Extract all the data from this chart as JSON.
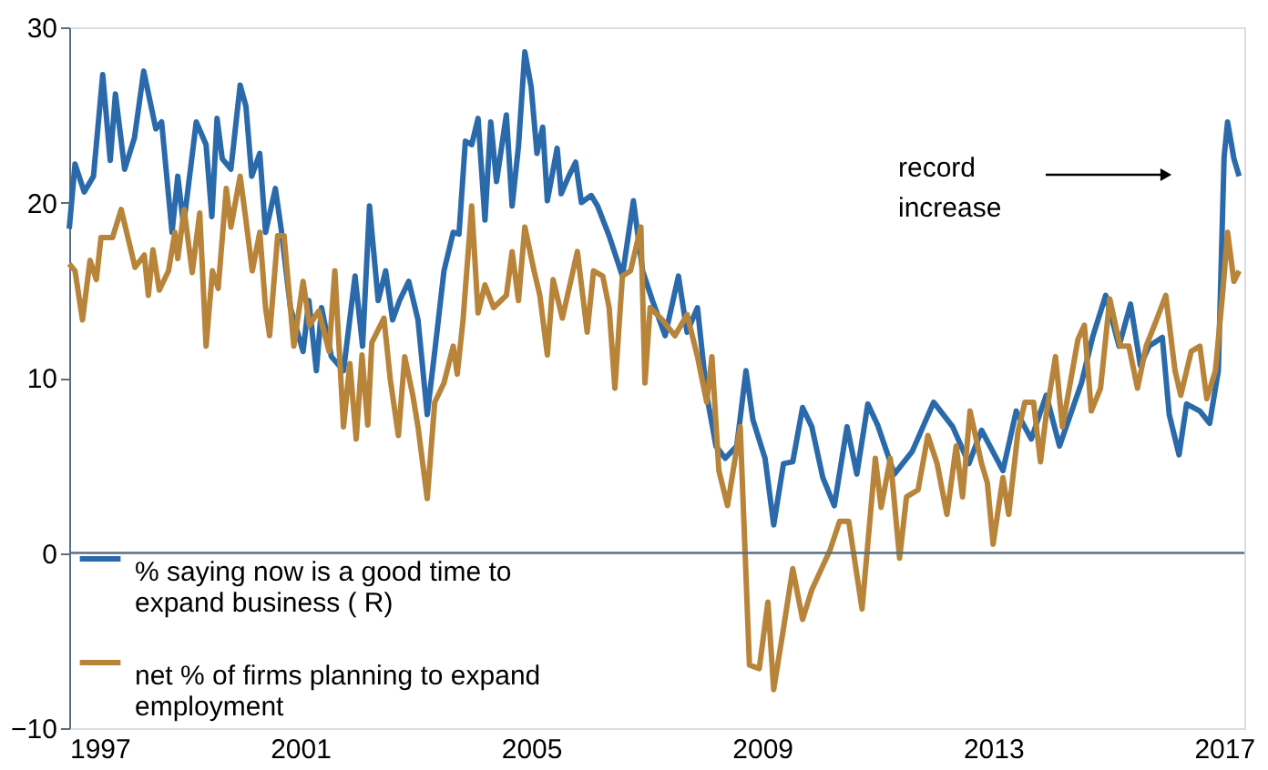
{
  "chart_data": {
    "type": "line",
    "xlim": [
      1997,
      2017.35
    ],
    "xticks": [
      1997,
      2001,
      2005,
      2009,
      2013,
      2017
    ],
    "ylim": [
      -10,
      30
    ],
    "yticks": [
      -10,
      0,
      10,
      20,
      30
    ],
    "grid": false,
    "legend": "bottom left",
    "line_style": "solid",
    "marker": "none",
    "ref_lines": [
      {
        "axis": "y",
        "value": 0,
        "color": "#5a6e7f"
      }
    ],
    "annotations": [
      "record increase"
    ],
    "series": [
      {
        "name": "% saying now is a good time to expand business ( R)",
        "color": "#2a6aab",
        "x": [
          1997.0,
          1997.1,
          1997.26,
          1997.42,
          1997.58,
          1997.71,
          1997.8,
          1997.96,
          1998.13,
          1998.29,
          1998.5,
          1998.6,
          1998.78,
          1998.88,
          1998.98,
          1999.2,
          1999.37,
          1999.47,
          1999.56,
          1999.65,
          1999.8,
          1999.96,
          2000.06,
          2000.16,
          2000.3,
          2000.4,
          2000.57,
          2000.67,
          2000.83,
          2001.05,
          2001.15,
          2001.28,
          2001.37,
          2001.54,
          2001.75,
          2001.95,
          2002.08,
          2002.2,
          2002.35,
          2002.48,
          2002.6,
          2002.72,
          2002.88,
          2003.04,
          2003.2,
          2003.33,
          2003.49,
          2003.65,
          2003.75,
          2003.86,
          2003.97,
          2004.08,
          2004.2,
          2004.3,
          2004.4,
          2004.57,
          2004.67,
          2004.78,
          2004.89,
          2005.0,
          2005.1,
          2005.2,
          2005.28,
          2005.45,
          2005.52,
          2005.65,
          2005.77,
          2005.87,
          2006.04,
          2006.15,
          2006.35,
          2006.58,
          2006.77,
          2006.93,
          2007.1,
          2007.32,
          2007.55,
          2007.7,
          2007.88,
          2008.04,
          2008.2,
          2008.36,
          2008.56,
          2008.72,
          2008.84,
          2009.05,
          2009.2,
          2009.37,
          2009.53,
          2009.7,
          2009.86,
          2010.05,
          2010.25,
          2010.47,
          2010.64,
          2010.83,
          2011.0,
          2011.29,
          2011.6,
          2011.97,
          2012.3,
          2012.58,
          2012.8,
          2013.17,
          2013.4,
          2013.66,
          2013.92,
          2014.15,
          2014.53,
          2014.73,
          2014.95,
          2015.18,
          2015.38,
          2015.55,
          2015.7,
          2015.93,
          2016.05,
          2016.22,
          2016.35,
          2016.58,
          2016.75,
          2016.9,
          2017.0,
          2017.06,
          2017.17,
          2017.26
        ],
        "values": [
          18.5,
          22.2,
          20.6,
          21.5,
          27.3,
          22.4,
          26.2,
          21.9,
          23.7,
          27.5,
          24.2,
          24.6,
          18.3,
          21.5,
          18.7,
          24.6,
          23.3,
          19.2,
          24.8,
          22.5,
          21.9,
          26.7,
          25.5,
          21.5,
          22.8,
          18.3,
          20.8,
          18.5,
          14.0,
          11.5,
          14.4,
          10.4,
          14.0,
          11.2,
          10.4,
          15.8,
          11.8,
          19.8,
          14.4,
          16.1,
          13.3,
          14.4,
          15.5,
          13.3,
          7.9,
          11.5,
          16.1,
          18.3,
          18.2,
          23.5,
          23.3,
          24.8,
          19.0,
          24.6,
          21.2,
          25.0,
          19.8,
          23.2,
          28.6,
          26.6,
          22.8,
          24.3,
          20.1,
          23.1,
          20.5,
          21.5,
          22.3,
          20.0,
          20.4,
          19.8,
          18.1,
          15.8,
          20.1,
          16.1,
          14.4,
          12.4,
          15.8,
          12.6,
          14.0,
          9.0,
          6.1,
          5.4,
          6.1,
          10.4,
          7.6,
          5.4,
          1.6,
          5.1,
          5.2,
          8.3,
          7.2,
          4.3,
          2.7,
          7.2,
          4.5,
          8.5,
          7.3,
          4.5,
          5.8,
          8.6,
          7.2,
          5.1,
          7.0,
          4.7,
          8.1,
          6.5,
          9.0,
          6.1,
          9.7,
          12.4,
          14.7,
          11.8,
          14.2,
          10.7,
          11.8,
          12.3,
          7.9,
          5.6,
          8.5,
          8.1,
          7.4,
          10.4,
          22.6,
          24.6,
          22.5,
          21.5
        ]
      },
      {
        "name": "net % of firms planning to expand employment",
        "color": "#b8843a",
        "x": [
          1997.0,
          1997.1,
          1997.23,
          1997.36,
          1997.47,
          1997.55,
          1997.75,
          1997.9,
          1998.14,
          1998.3,
          1998.37,
          1998.45,
          1998.56,
          1998.72,
          1998.83,
          1998.88,
          1998.99,
          1999.13,
          1999.26,
          1999.37,
          1999.48,
          1999.58,
          1999.72,
          1999.8,
          1999.96,
          2000.06,
          2000.17,
          2000.3,
          2000.4,
          2000.47,
          2000.61,
          2000.72,
          2000.89,
          2001.05,
          2001.16,
          2001.32,
          2001.5,
          2001.6,
          2001.75,
          2001.86,
          2001.97,
          2002.07,
          2002.17,
          2002.24,
          2002.45,
          2002.56,
          2002.7,
          2002.81,
          2002.95,
          2003.04,
          2003.2,
          2003.33,
          2003.49,
          2003.65,
          2003.72,
          2003.82,
          2003.97,
          2004.08,
          2004.2,
          2004.35,
          2004.57,
          2004.67,
          2004.78,
          2004.89,
          2005.05,
          2005.15,
          2005.28,
          2005.38,
          2005.54,
          2005.8,
          2005.97,
          2006.08,
          2006.24,
          2006.35,
          2006.45,
          2006.58,
          2006.72,
          2006.9,
          2006.97,
          2007.06,
          2007.27,
          2007.49,
          2007.7,
          2007.88,
          2008.04,
          2008.13,
          2008.25,
          2008.4,
          2008.62,
          2008.78,
          2008.95,
          2009.1,
          2009.2,
          2009.37,
          2009.53,
          2009.7,
          2009.86,
          2010.0,
          2010.18,
          2010.34,
          2010.5,
          2010.73,
          2010.96,
          2011.06,
          2011.22,
          2011.38,
          2011.5,
          2011.7,
          2011.87,
          2012.03,
          2012.2,
          2012.36,
          2012.47,
          2012.6,
          2012.8,
          2012.9,
          2013.0,
          2013.17,
          2013.27,
          2013.43,
          2013.55,
          2013.7,
          2013.82,
          2013.92,
          2014.08,
          2014.2,
          2014.47,
          2014.58,
          2014.7,
          2014.86,
          2015.02,
          2015.2,
          2015.35,
          2015.5,
          2015.65,
          2015.83,
          2015.99,
          2016.15,
          2016.25,
          2016.43,
          2016.58,
          2016.7,
          2016.85,
          2016.98,
          2017.06,
          2017.17,
          2017.26
        ],
        "values": [
          16.5,
          16.1,
          13.3,
          16.7,
          15.6,
          18.0,
          18.0,
          19.6,
          16.3,
          17.0,
          14.7,
          17.3,
          15.0,
          16.1,
          18.3,
          16.8,
          19.6,
          16.0,
          19.4,
          11.8,
          16.1,
          15.1,
          20.8,
          18.6,
          21.5,
          19.0,
          16.1,
          18.3,
          14.0,
          12.4,
          18.1,
          18.1,
          11.8,
          15.5,
          13.0,
          13.8,
          11.5,
          16.1,
          7.2,
          10.8,
          6.5,
          11.3,
          7.3,
          12.0,
          13.4,
          9.9,
          6.7,
          11.2,
          9.0,
          7.2,
          3.1,
          8.6,
          9.7,
          11.8,
          10.2,
          13.3,
          19.8,
          13.7,
          15.3,
          14.0,
          14.7,
          17.2,
          14.4,
          18.6,
          16.1,
          14.7,
          11.3,
          15.6,
          13.4,
          17.2,
          12.6,
          16.1,
          15.8,
          14.0,
          9.4,
          15.8,
          16.1,
          18.6,
          9.7,
          14.0,
          13.3,
          12.4,
          13.6,
          11.2,
          8.6,
          11.2,
          4.7,
          2.7,
          7.2,
          -6.4,
          -6.6,
          -2.8,
          -7.8,
          -4.3,
          -0.9,
          -3.8,
          -2.1,
          -1.1,
          0.2,
          1.8,
          1.8,
          -3.2,
          5.4,
          2.6,
          5.4,
          -0.3,
          3.2,
          3.6,
          6.7,
          5.1,
          2.2,
          6.1,
          3.2,
          8.1,
          5.1,
          4.0,
          0.5,
          4.3,
          2.2,
          6.9,
          8.6,
          8.6,
          5.2,
          7.9,
          11.2,
          7.2,
          12.2,
          13.0,
          8.1,
          9.4,
          14.5,
          11.8,
          11.8,
          9.4,
          11.8,
          13.3,
          14.7,
          10.4,
          9.0,
          11.5,
          11.8,
          8.8,
          10.4,
          15.0,
          18.3,
          15.5,
          16.1
        ]
      }
    ]
  }
}
